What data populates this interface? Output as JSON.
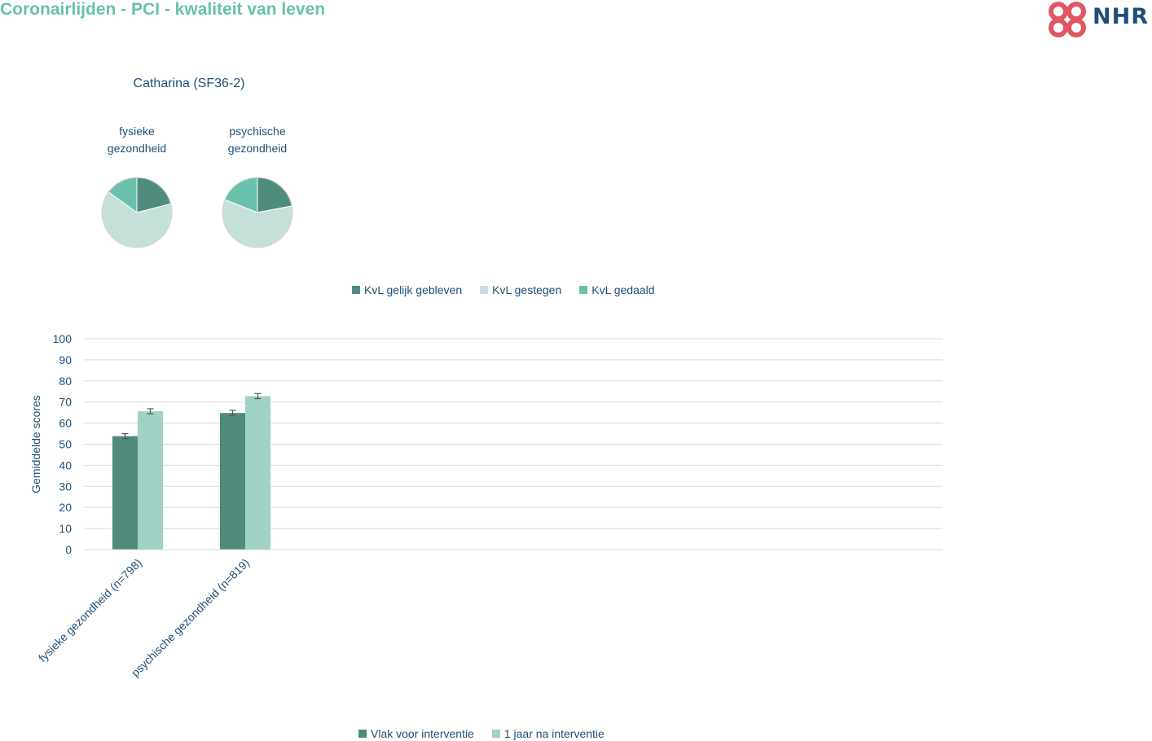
{
  "header": {
    "title": "Coronairlijden - PCI - kwaliteit van leven",
    "logo_text": "NHR"
  },
  "colors": {
    "title": "#67c1ac",
    "dark_teal": "#4f8c7e",
    "light_teal": "#c5e0d9",
    "mid_teal": "#6ac1ad",
    "bar_before": "#4f8c7e",
    "bar_after": "#a0d1c5",
    "text": "#1f4e79",
    "logo_red": "#e05661"
  },
  "chart_data": [
    {
      "type": "pie",
      "title": "Catharina (SF36-2)",
      "legend": [
        "KvL gelijk gebleven",
        "KvL gestegen",
        "KvL gedaald"
      ],
      "pies": [
        {
          "label_lines": [
            "fysieke",
            "gezondheid"
          ],
          "values": [
            21,
            64,
            15
          ]
        },
        {
          "label_lines": [
            "psychische",
            "gezondheid"
          ],
          "values": [
            22,
            59,
            19
          ]
        }
      ]
    },
    {
      "type": "bar",
      "ylabel": "Gemiddelde scores",
      "ylim": [
        0,
        100
      ],
      "yticks": [
        0,
        10,
        20,
        30,
        40,
        50,
        60,
        70,
        80,
        90,
        100
      ],
      "categories": [
        "fysieke gezondheid (n=798)",
        "psychische gezondheid (n=819)"
      ],
      "series": [
        {
          "name": "Vlak voor interventie",
          "values": [
            53.8,
            64.8
          ],
          "error": [
            1.2,
            1.3
          ]
        },
        {
          "name": "1 jaar na interventie",
          "values": [
            65.6,
            72.8
          ],
          "error": [
            1.2,
            1.2
          ]
        }
      ],
      "grid": true,
      "legend_position": "bottom"
    }
  ]
}
